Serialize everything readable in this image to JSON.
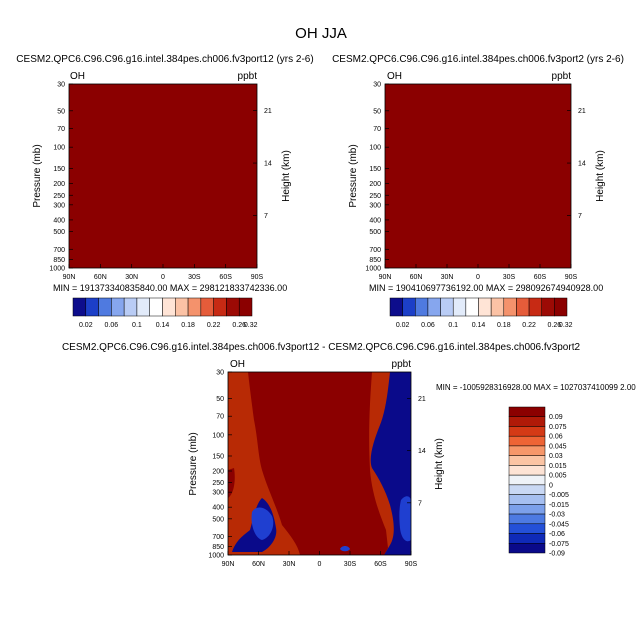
{
  "figure": {
    "title": "OH JJA"
  },
  "chart_data": [
    {
      "type": "heatmap",
      "title": "CESM2.QPC6.C96.C96.g16.intel.384pes.ch006.fv3port12 (yrs 2-6)",
      "left_label": "OH",
      "right_label": "ppbt",
      "ylabel": "Pressure (mb)",
      "ylabel_right": "Height (km)",
      "x_ticks": [
        "90N",
        "60N",
        "30N",
        "0",
        "30S",
        "60S",
        "90S"
      ],
      "y_ticks": [
        "30",
        "50",
        "70",
        "100",
        "150",
        "200",
        "250",
        "300",
        "400",
        "500",
        "700",
        "850",
        "1000"
      ],
      "y_ticks_right": [
        "21",
        "14",
        "7"
      ],
      "fill_color": "#8b0000",
      "min_max": "MIN = 191373340835840.00   MAX = 298121833742336.00",
      "colorbar_orientation": "horizontal",
      "colorbar_labels": [
        "0.02",
        "0.06",
        "0.1",
        "0.14",
        "0.18",
        "0.22",
        "0.26",
        "0.32"
      ]
    },
    {
      "type": "heatmap",
      "title": "CESM2.QPC6.C96.C96.g16.intel.384pes.ch006.fv3port2 (yrs 2-6)",
      "left_label": "OH",
      "right_label": "ppbt",
      "ylabel": "Pressure (mb)",
      "ylabel_right": "Height (km)",
      "x_ticks": [
        "90N",
        "60N",
        "30N",
        "0",
        "30S",
        "60S",
        "90S"
      ],
      "y_ticks": [
        "30",
        "50",
        "70",
        "100",
        "150",
        "200",
        "250",
        "300",
        "400",
        "500",
        "700",
        "850",
        "1000"
      ],
      "y_ticks_right": [
        "21",
        "14",
        "7"
      ],
      "fill_color": "#8b0000",
      "min_max": "MIN = 190410697736192.00   MAX = 298092674940928.00",
      "colorbar_orientation": "horizontal",
      "colorbar_labels": [
        "0.02",
        "0.06",
        "0.1",
        "0.14",
        "0.18",
        "0.22",
        "0.26",
        "0.32"
      ]
    },
    {
      "type": "heatmap",
      "title": "CESM2.QPC6.C96.C96.g16.intel.384pes.ch006.fv3port12 - CESM2.QPC6.C96.C96.g16.intel.384pes.ch006.fv3port2",
      "left_label": "OH",
      "right_label": "ppbt",
      "ylabel": "Pressure (mb)",
      "ylabel_right": "Height (km)",
      "x_ticks": [
        "90N",
        "60N",
        "30N",
        "0",
        "30S",
        "60S",
        "90S"
      ],
      "y_ticks": [
        "30",
        "50",
        "70",
        "100",
        "150",
        "200",
        "250",
        "300",
        "400",
        "500",
        "700",
        "850",
        "1000"
      ],
      "y_ticks_right": [
        "21",
        "14",
        "7"
      ],
      "min_max": "MIN = -1005928316928.00   MAX = 1027037410099 2.00",
      "colorbar_orientation": "vertical",
      "colorbar_labels": [
        "0.09",
        "0.075",
        "0.06",
        "0.045",
        "0.03",
        "0.015",
        "0.005",
        "0",
        "-0.005",
        "-0.015",
        "-0.03",
        "-0.045",
        "-0.06",
        "-0.075",
        "-0.09"
      ]
    }
  ],
  "colors": {
    "horizontal_colorbar": [
      "#0d0d8c",
      "#1c3fc8",
      "#4f7ae0",
      "#86a6ee",
      "#b9ccf5",
      "#e2ebfa",
      "#ffffff",
      "#ffe4d6",
      "#fbc2a5",
      "#f4926c",
      "#e55c3a",
      "#c72a14",
      "#9c0a05",
      "#8b0000"
    ],
    "vertical_colorbar": [
      "#8b0000",
      "#b01a08",
      "#d43a16",
      "#ee6435",
      "#f7976a",
      "#fbc4a4",
      "#fde3d5",
      "#eef2f8",
      "#c9d8f4",
      "#a6bff0",
      "#7ca0ea",
      "#4d7ae2",
      "#2450d8",
      "#0f2ab8",
      "#0a0a8a"
    ],
    "diff_base": "#b82a05",
    "diff_mid": "#8b0000",
    "diff_neg": "#0a0a8a",
    "diff_neg2": "#1f3fd0"
  }
}
